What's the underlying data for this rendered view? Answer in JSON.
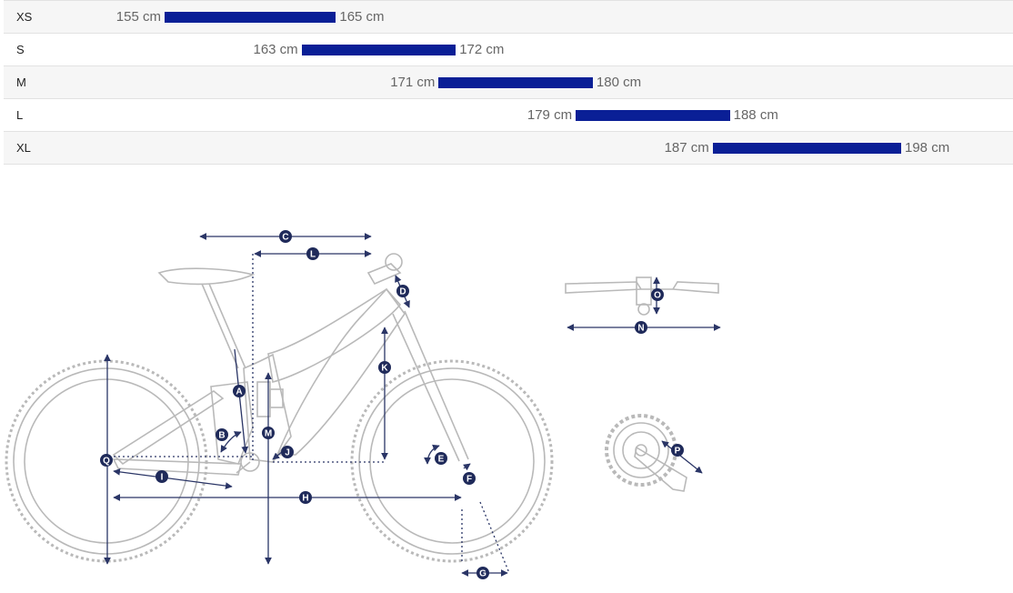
{
  "size_chart": {
    "rows": [
      {
        "size": "XS",
        "min": 155,
        "max": 165,
        "min_label": "155 cm",
        "max_label": "165 cm"
      },
      {
        "size": "S",
        "min": 163,
        "max": 172,
        "min_label": "163 cm",
        "max_label": "172 cm"
      },
      {
        "size": "M",
        "min": 171,
        "max": 180,
        "min_label": "171 cm",
        "max_label": "180 cm"
      },
      {
        "size": "L",
        "min": 179,
        "max": 188,
        "min_label": "179 cm",
        "max_label": "188 cm"
      },
      {
        "size": "XL",
        "min": 187,
        "max": 198,
        "min_label": "187 cm",
        "max_label": "198 cm"
      }
    ]
  },
  "geometry": {
    "labels": [
      "A",
      "B",
      "C",
      "D",
      "E",
      "F",
      "G",
      "H",
      "I",
      "J",
      "K",
      "L",
      "M",
      "N",
      "O",
      "P",
      "Q"
    ]
  },
  "colors": {
    "bar": "#0a1f96",
    "badge": "#1f2a5a",
    "line_art": "#b9b9b9",
    "dimension": "#2a3566"
  }
}
